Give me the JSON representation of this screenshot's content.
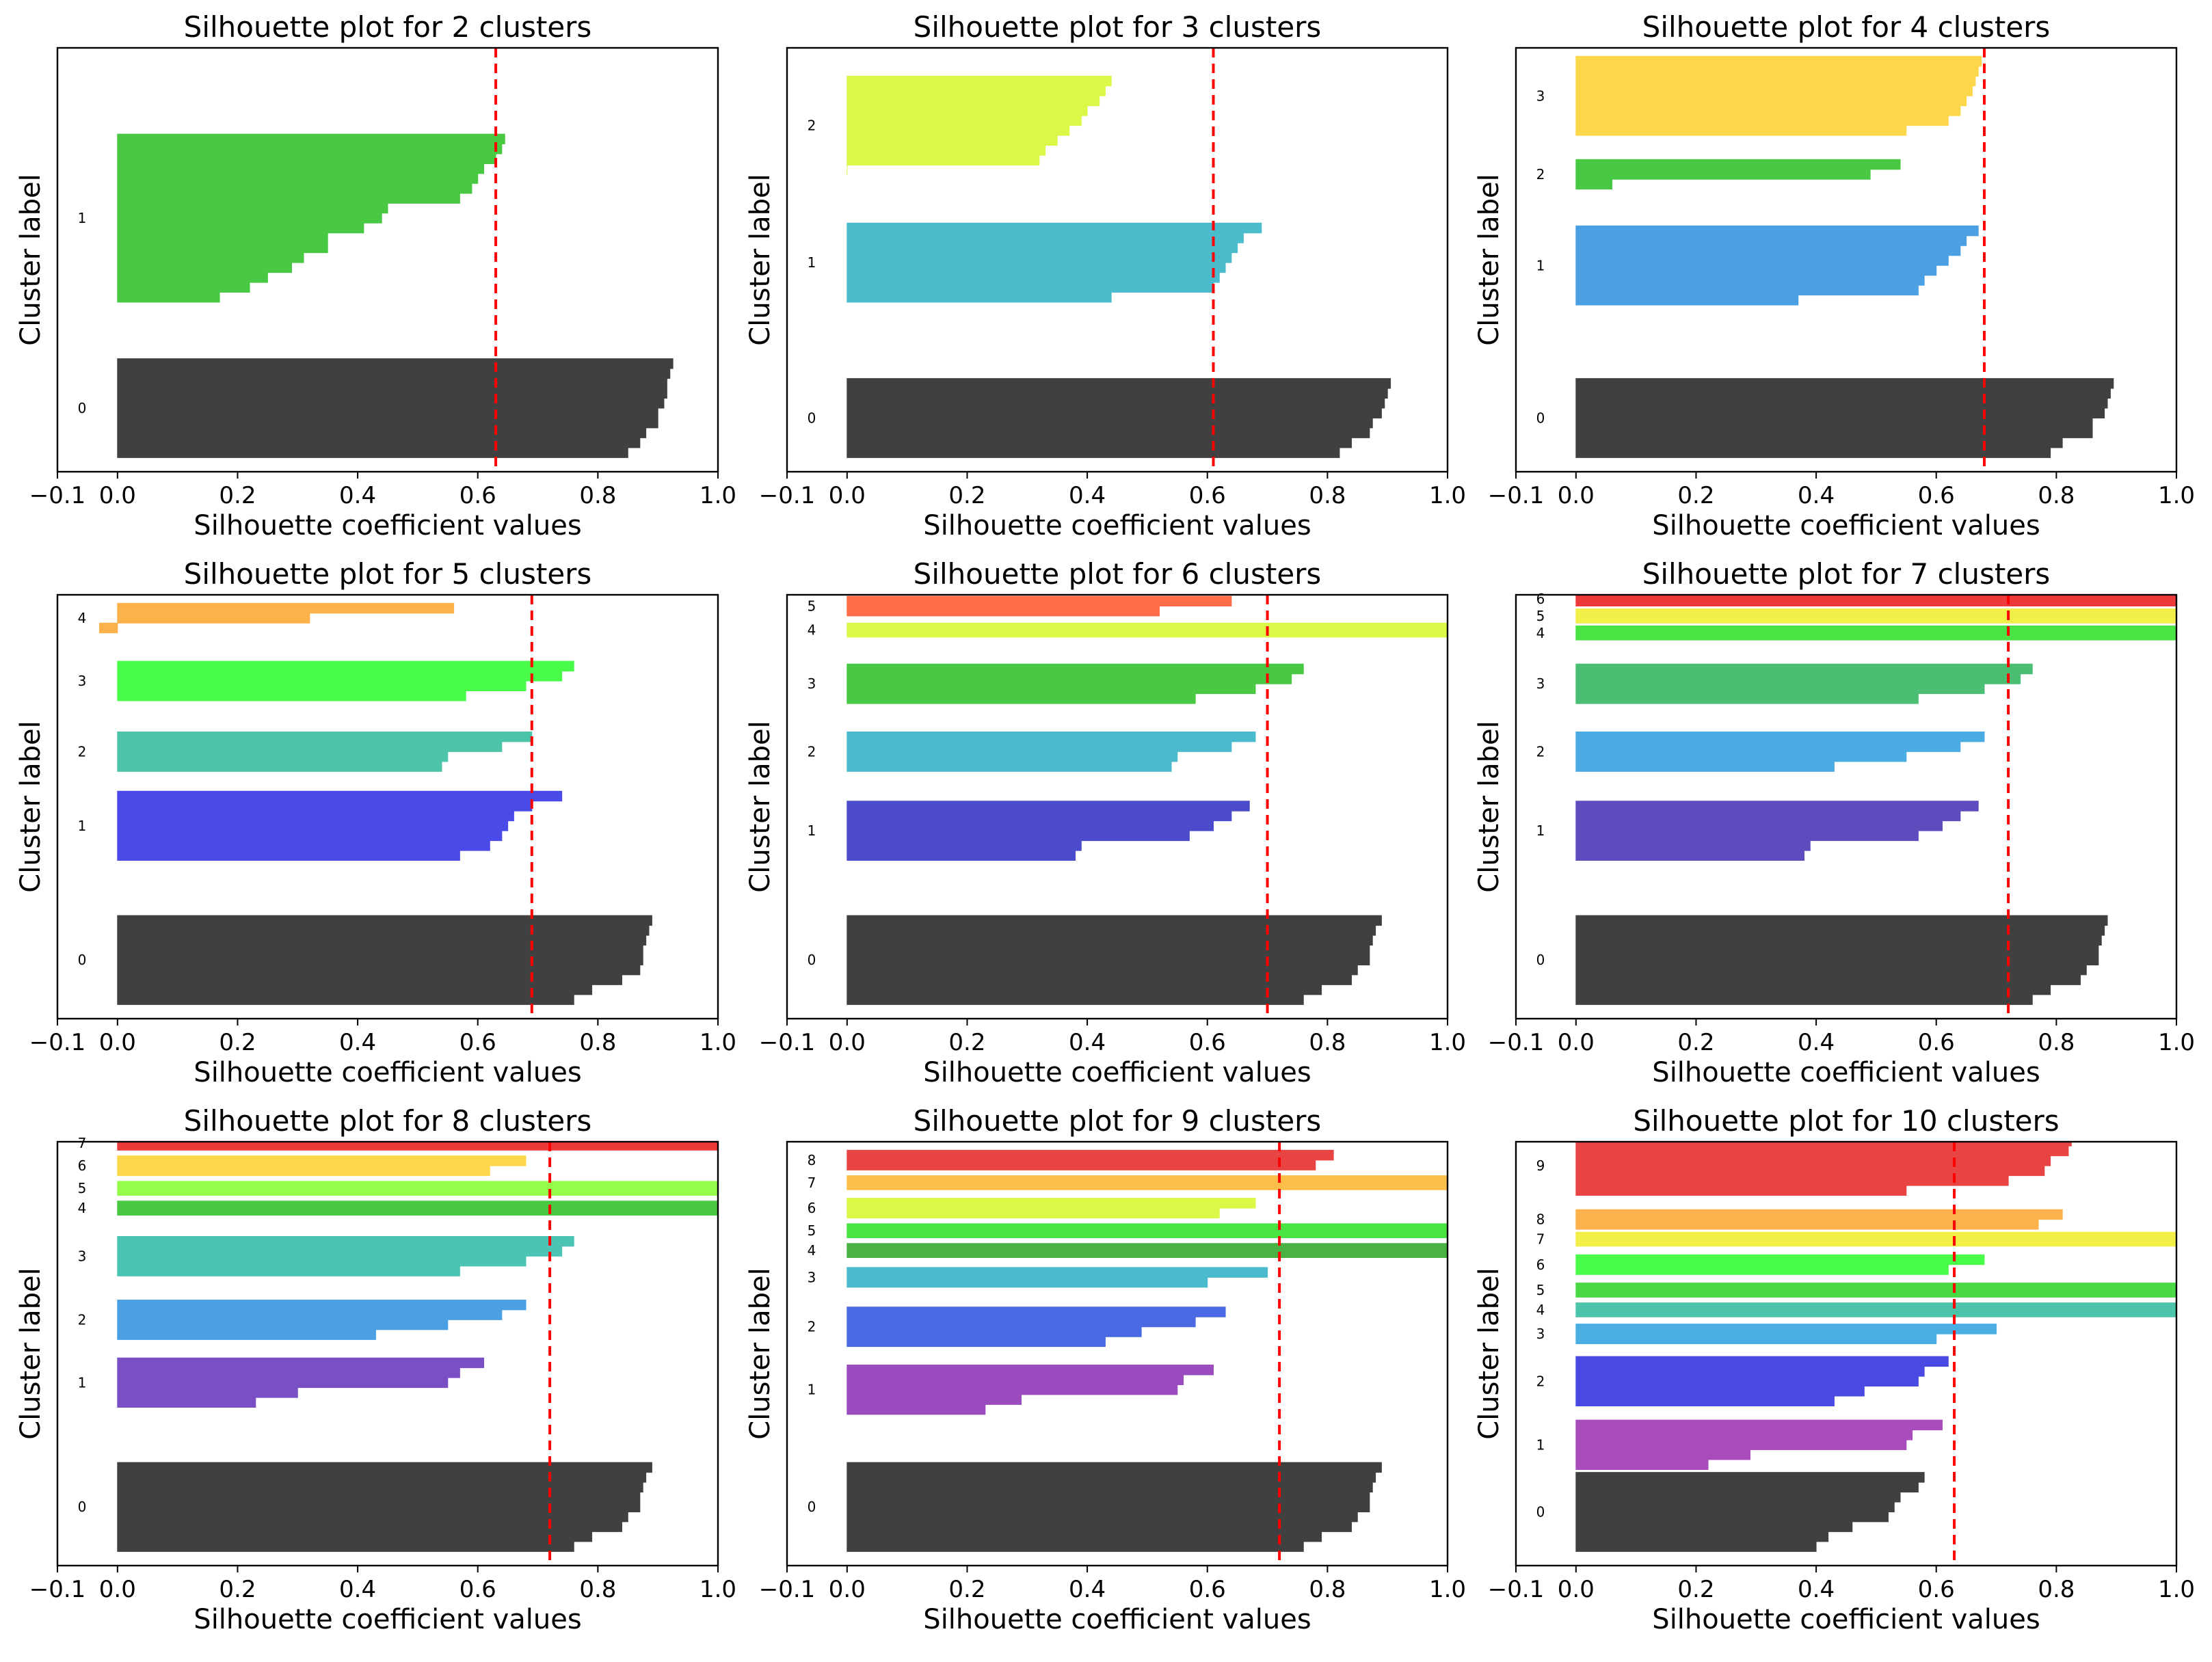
{
  "figure": {
    "x_tick_labels": [
      "−0.1",
      "0.0",
      "0.2",
      "0.4",
      "0.6",
      "0.8",
      "1.0"
    ],
    "xlabel": "Silhouette coefficient values",
    "ylabel": "Cluster label"
  },
  "chart_data": [
    {
      "type": "silhouette",
      "title": "Silhouette plot for 2 clusters",
      "xlabel": "Silhouette coefficient values",
      "ylabel": "Cluster label",
      "xlim": [
        -0.1,
        1.0
      ],
      "ylim": [
        0,
        300
      ],
      "avg_silhouette": 0.63,
      "clusters": [
        {
          "label": "0",
          "color": "#404040",
          "y_start": 10,
          "values": [
            0.85,
            0.87,
            0.88,
            0.9,
            0.9,
            0.91,
            0.915,
            0.915,
            0.92,
            0.925
          ]
        },
        {
          "label": "1",
          "color": "#49c943",
          "y_start": 120,
          "values": [
            0.17,
            0.22,
            0.25,
            0.29,
            0.31,
            0.35,
            0.35,
            0.41,
            0.44,
            0.45,
            0.57,
            0.59,
            0.6,
            0.61,
            0.63,
            0.64,
            0.645
          ]
        }
      ]
    },
    {
      "type": "silhouette",
      "title": "Silhouette plot for 3 clusters",
      "xlabel": "Silhouette coefficient values",
      "ylabel": "Cluster label",
      "xlim": [
        -0.1,
        1.0
      ],
      "ylim": [
        0,
        300
      ],
      "avg_silhouette": 0.61,
      "clusters": [
        {
          "label": "0",
          "color": "#404040",
          "y_start": 10,
          "values": [
            0.82,
            0.84,
            0.87,
            0.875,
            0.89,
            0.895,
            0.9,
            0.905
          ]
        },
        {
          "label": "1",
          "color": "#4bbccc",
          "y_start": 120,
          "values": [
            0.44,
            0.61,
            0.62,
            0.63,
            0.64,
            0.65,
            0.66,
            0.69
          ]
        },
        {
          "label": "2",
          "color": "#dbf847",
          "y_start": 210,
          "values": [
            0.0,
            0.32,
            0.33,
            0.35,
            0.37,
            0.39,
            0.4,
            0.42,
            0.43,
            0.44
          ]
        }
      ]
    },
    {
      "type": "silhouette",
      "title": "Silhouette plot for 4 clusters",
      "xlabel": "Silhouette coefficient values",
      "ylabel": "Cluster label",
      "xlim": [
        -0.1,
        1.0
      ],
      "ylim": [
        0,
        300
      ],
      "avg_silhouette": 0.68,
      "clusters": [
        {
          "label": "0",
          "color": "#404040",
          "y_start": 10,
          "values": [
            0.79,
            0.81,
            0.86,
            0.86,
            0.88,
            0.885,
            0.89,
            0.895
          ]
        },
        {
          "label": "1",
          "color": "#4b9fe3",
          "y_start": 118,
          "values": [
            0.37,
            0.57,
            0.58,
            0.6,
            0.62,
            0.64,
            0.65,
            0.67
          ]
        },
        {
          "label": "2",
          "color": "#49c943",
          "y_start": 200,
          "values": [
            0.06,
            0.49,
            0.54
          ]
        },
        {
          "label": "3",
          "color": "#fdd74a",
          "y_start": 238,
          "values": [
            0.55,
            0.62,
            0.64,
            0.65,
            0.66,
            0.665,
            0.67,
            0.675
          ]
        }
      ]
    },
    {
      "type": "silhouette",
      "title": "Silhouette plot for 5 clusters",
      "xlabel": "Silhouette coefficient values",
      "ylabel": "Cluster label",
      "xlim": [
        -0.1,
        1.0
      ],
      "ylim": [
        0,
        300
      ],
      "avg_silhouette": 0.69,
      "clusters": [
        {
          "label": "0",
          "color": "#404040",
          "y_start": 10,
          "values": [
            0.76,
            0.79,
            0.84,
            0.87,
            0.875,
            0.875,
            0.88,
            0.885,
            0.89
          ]
        },
        {
          "label": "1",
          "color": "#4a4ae8",
          "y_start": 112,
          "values": [
            0.57,
            0.62,
            0.64,
            0.65,
            0.66,
            0.69,
            0.74
          ]
        },
        {
          "label": "2",
          "color": "#4bc4aa",
          "y_start": 175,
          "values": [
            0.54,
            0.55,
            0.64,
            0.69
          ]
        },
        {
          "label": "3",
          "color": "#4afc4a",
          "y_start": 225,
          "values": [
            0.58,
            0.68,
            0.74,
            0.76
          ]
        },
        {
          "label": "4",
          "color": "#fdb14a",
          "y_start": 273,
          "values": [
            -0.03,
            0.32,
            0.56
          ]
        }
      ]
    },
    {
      "type": "silhouette",
      "title": "Silhouette plot for 6 clusters",
      "xlabel": "Silhouette coefficient values",
      "ylabel": "Cluster label",
      "xlim": [
        -0.1,
        1.0
      ],
      "ylim": [
        0,
        300
      ],
      "avg_silhouette": 0.7,
      "clusters": [
        {
          "label": "0",
          "color": "#404040",
          "y_start": 10,
          "values": [
            0.76,
            0.79,
            0.84,
            0.85,
            0.87,
            0.87,
            0.875,
            0.88,
            0.89
          ]
        },
        {
          "label": "1",
          "color": "#4b4bcb",
          "y_start": 112,
          "values": [
            0.38,
            0.39,
            0.57,
            0.61,
            0.64,
            0.67
          ]
        },
        {
          "label": "2",
          "color": "#4bbacc",
          "y_start": 175,
          "values": [
            0.54,
            0.55,
            0.64,
            0.68
          ]
        },
        {
          "label": "3",
          "color": "#49c943",
          "y_start": 223,
          "values": [
            0.58,
            0.68,
            0.74,
            0.76
          ]
        },
        {
          "label": "4",
          "color": "#dbf847",
          "y_start": 270,
          "values": [
            1.0
          ]
        },
        {
          "label": "5",
          "color": "#fe6c4a",
          "y_start": 285,
          "values": [
            0.52,
            0.64
          ]
        }
      ]
    },
    {
      "type": "silhouette",
      "title": "Silhouette plot for 7 clusters",
      "xlabel": "Silhouette coefficient values",
      "ylabel": "Cluster label",
      "xlim": [
        -0.1,
        1.0
      ],
      "ylim": [
        0,
        300
      ],
      "avg_silhouette": 0.72,
      "clusters": [
        {
          "label": "0",
          "color": "#404040",
          "y_start": 10,
          "values": [
            0.76,
            0.79,
            0.84,
            0.85,
            0.87,
            0.87,
            0.875,
            0.88,
            0.885
          ]
        },
        {
          "label": "1",
          "color": "#5d4cbd",
          "y_start": 112,
          "values": [
            0.38,
            0.39,
            0.57,
            0.61,
            0.64,
            0.67
          ]
        },
        {
          "label": "2",
          "color": "#4bace3",
          "y_start": 175,
          "values": [
            0.43,
            0.55,
            0.64,
            0.68
          ]
        },
        {
          "label": "3",
          "color": "#4bbe74",
          "y_start": 223,
          "values": [
            0.57,
            0.68,
            0.74,
            0.76
          ]
        },
        {
          "label": "4",
          "color": "#49e444",
          "y_start": 268,
          "values": [
            1.0
          ]
        },
        {
          "label": "5",
          "color": "#f2ef49",
          "y_start": 280,
          "values": [
            1.0
          ]
        },
        {
          "label": "6",
          "color": "#ec3a3a",
          "y_start": 292,
          "values": [
            1.0
          ]
        }
      ]
    },
    {
      "type": "silhouette",
      "title": "Silhouette plot for 8 clusters",
      "xlabel": "Silhouette coefficient values",
      "ylabel": "Cluster label",
      "xlim": [
        -0.1,
        1.0
      ],
      "ylim": [
        0,
        300
      ],
      "avg_silhouette": 0.72,
      "clusters": [
        {
          "label": "0",
          "color": "#404040",
          "y_start": 10,
          "values": [
            0.76,
            0.79,
            0.84,
            0.85,
            0.87,
            0.87,
            0.875,
            0.88,
            0.89
          ]
        },
        {
          "label": "1",
          "color": "#7a4ec4",
          "y_start": 112,
          "values": [
            0.23,
            0.3,
            0.55,
            0.57,
            0.61
          ]
        },
        {
          "label": "2",
          "color": "#4b9fe3",
          "y_start": 160,
          "values": [
            0.43,
            0.55,
            0.64,
            0.68
          ]
        },
        {
          "label": "3",
          "color": "#4bc4b6",
          "y_start": 205,
          "values": [
            0.57,
            0.68,
            0.74,
            0.76
          ]
        },
        {
          "label": "4",
          "color": "#49c943",
          "y_start": 248,
          "values": [
            1.0
          ]
        },
        {
          "label": "5",
          "color": "#96fc4a",
          "y_start": 262,
          "values": [
            1.0
          ]
        },
        {
          "label": "6",
          "color": "#fdd74a",
          "y_start": 276,
          "values": [
            0.62,
            0.68
          ]
        },
        {
          "label": "7",
          "color": "#ec3a3a",
          "y_start": 294,
          "values": [
            1.0
          ]
        }
      ]
    },
    {
      "type": "silhouette",
      "title": "Silhouette plot for 9 clusters",
      "xlabel": "Silhouette coefficient values",
      "ylabel": "Cluster label",
      "xlim": [
        -0.1,
        1.0
      ],
      "ylim": [
        0,
        300
      ],
      "avg_silhouette": 0.72,
      "clusters": [
        {
          "label": "0",
          "color": "#404040",
          "y_start": 10,
          "values": [
            0.76,
            0.79,
            0.84,
            0.85,
            0.87,
            0.87,
            0.875,
            0.88,
            0.89
          ]
        },
        {
          "label": "1",
          "color": "#9a4cbf",
          "y_start": 107,
          "values": [
            0.23,
            0.29,
            0.55,
            0.56,
            0.61
          ]
        },
        {
          "label": "2",
          "color": "#4a6ae3",
          "y_start": 155,
          "values": [
            0.43,
            0.49,
            0.58,
            0.63
          ]
        },
        {
          "label": "3",
          "color": "#4bbacc",
          "y_start": 197,
          "values": [
            0.6,
            0.7
          ]
        },
        {
          "label": "4",
          "color": "#49b243",
          "y_start": 218,
          "values": [
            1.0
          ]
        },
        {
          "label": "5",
          "color": "#49e444",
          "y_start": 232,
          "values": [
            1.0
          ]
        },
        {
          "label": "6",
          "color": "#dbf847",
          "y_start": 246,
          "values": [
            0.62,
            0.68
          ]
        },
        {
          "label": "7",
          "color": "#fdbf4a",
          "y_start": 266,
          "values": [
            1.0
          ]
        },
        {
          "label": "8",
          "color": "#e84444",
          "y_start": 280,
          "values": [
            0.78,
            0.81
          ]
        }
      ]
    },
    {
      "type": "silhouette",
      "title": "Silhouette plot for 10 clusters",
      "xlabel": "Silhouette coefficient values",
      "ylabel": "Cluster label",
      "xlim": [
        -0.1,
        1.0
      ],
      "ylim": [
        0,
        300
      ],
      "avg_silhouette": 0.63,
      "clusters": [
        {
          "label": "0",
          "color": "#404040",
          "y_start": 10,
          "values": [
            0.4,
            0.42,
            0.46,
            0.52,
            0.53,
            0.54,
            0.57,
            0.58
          ]
        },
        {
          "label": "1",
          "color": "#a84cbb",
          "y_start": 68,
          "values": [
            0.22,
            0.29,
            0.55,
            0.56,
            0.61
          ]
        },
        {
          "label": "2",
          "color": "#4a4ae3",
          "y_start": 113,
          "values": [
            0.43,
            0.48,
            0.57,
            0.58,
            0.62
          ]
        },
        {
          "label": "3",
          "color": "#4baee3",
          "y_start": 157,
          "values": [
            0.6,
            0.7
          ]
        },
        {
          "label": "4",
          "color": "#4bc4aa",
          "y_start": 176,
          "values": [
            1.0
          ]
        },
        {
          "label": "5",
          "color": "#49d944",
          "y_start": 190,
          "values": [
            1.0
          ]
        },
        {
          "label": "6",
          "color": "#4afc4a",
          "y_start": 206,
          "values": [
            0.62,
            0.68
          ]
        },
        {
          "label": "7",
          "color": "#f2ef49",
          "y_start": 226,
          "values": [
            1.0
          ]
        },
        {
          "label": "8",
          "color": "#fdb14a",
          "y_start": 238,
          "values": [
            0.77,
            0.81
          ]
        },
        {
          "label": "9",
          "color": "#e84444",
          "y_start": 262,
          "values": [
            0.55,
            0.72,
            0.78,
            0.79,
            0.82,
            0.825
          ]
        }
      ]
    }
  ]
}
